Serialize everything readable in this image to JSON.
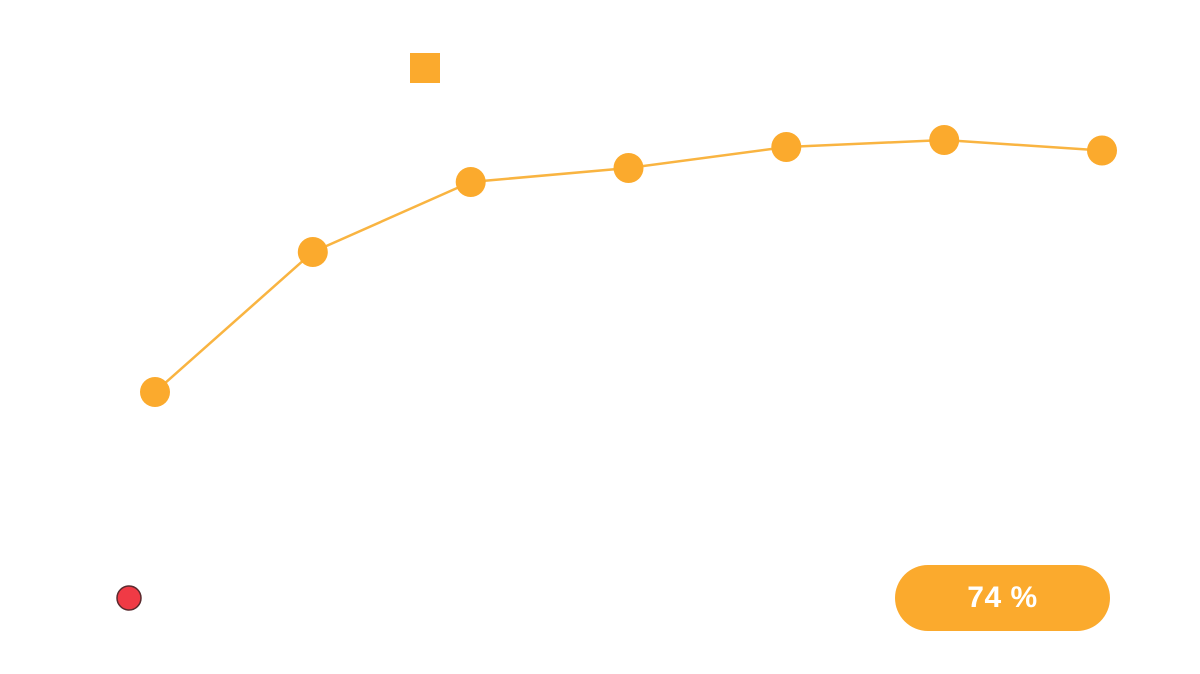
{
  "colors": {
    "series": "#FBAA2D",
    "line": "#F9B441",
    "marker_alert": "#F03A45",
    "marker_alert_stroke": "#5A2A2E",
    "pill": "#FBAA2D"
  },
  "legend": {
    "marker_shape": "square"
  },
  "alert_marker": {
    "shape": "circle"
  },
  "score": {
    "value": 74,
    "label": "74 %"
  },
  "chart_data": {
    "type": "line",
    "title": "",
    "xlabel": "",
    "ylabel": "",
    "x": [
      1,
      2,
      3,
      4,
      5,
      6,
      7
    ],
    "ylim": [
      0,
      100
    ],
    "grid": false,
    "legend": "top-center",
    "series": [
      {
        "values": [
          44,
          64,
          74,
          76,
          79,
          80,
          78.5
        ]
      }
    ]
  }
}
